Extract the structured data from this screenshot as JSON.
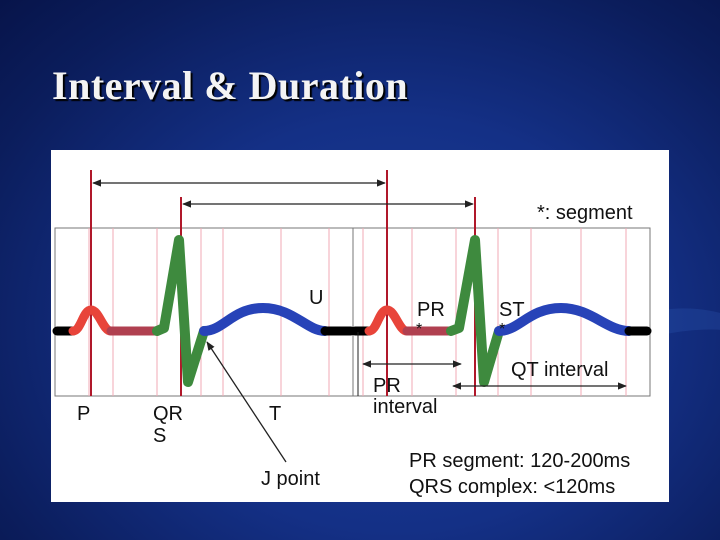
{
  "slide": {
    "title": "Interval & Duration"
  },
  "diagram": {
    "segment_note": "*: segment",
    "labels": {
      "p": "P",
      "qr": "QR",
      "s": "S",
      "t": "T",
      "u": "U",
      "j_point": "J point",
      "pr": "PR",
      "st": "ST",
      "star_pr": "*",
      "star_st": "*",
      "pr_interval_line1": "PR",
      "pr_interval_line2": "interval",
      "qt_interval": "QT interval"
    },
    "notes": {
      "pr_segment": "PR segment: 120-200ms",
      "qrs_complex": "QRS complex: <120ms"
    },
    "colors": {
      "p_wave": "#e8443a",
      "pr_segment": "#b04050",
      "qrs": "#3e8a3e",
      "t_wave": "#2743b8",
      "baseline": "#000000",
      "marker": "#b0182a",
      "grid": "#f0a9b4"
    }
  }
}
